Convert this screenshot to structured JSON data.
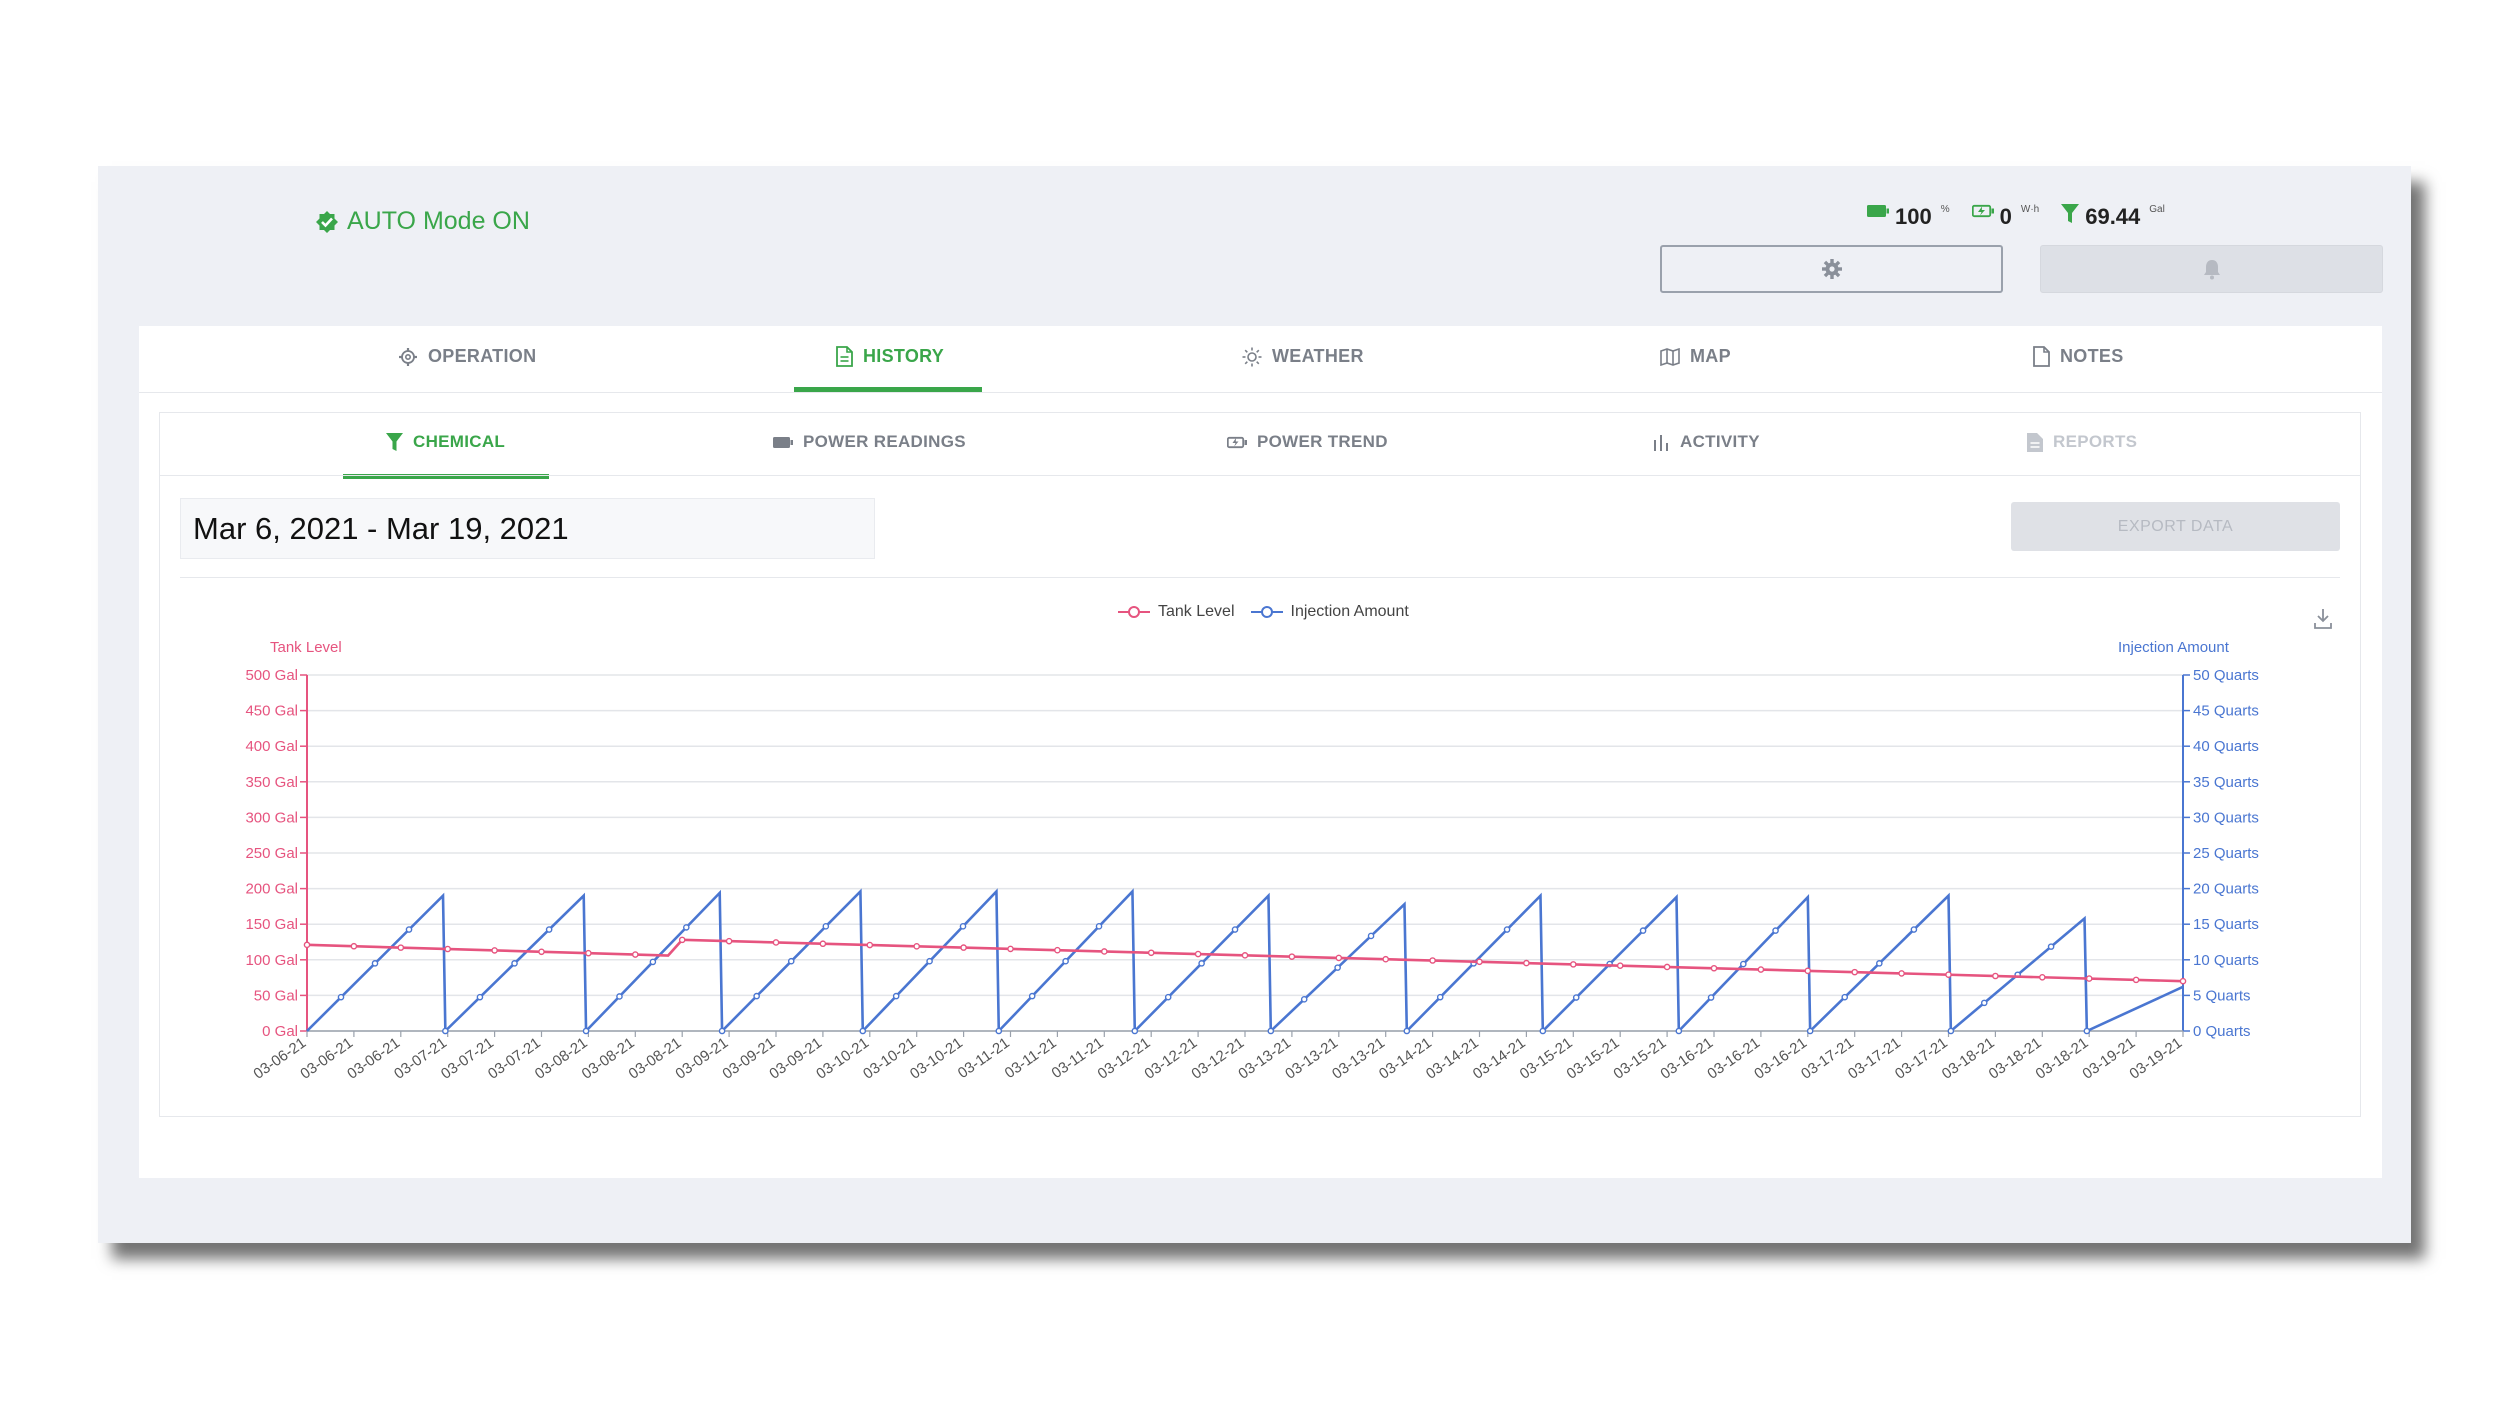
{
  "header": {
    "auto_mode": "AUTO Mode ON",
    "battery_value": "100",
    "battery_unit": "%",
    "energy_value": "0",
    "energy_unit": "W·h",
    "tank_value": "69.44",
    "tank_unit": "Gal"
  },
  "main_tabs": [
    {
      "label": "OPERATION",
      "icon": "gear-icon"
    },
    {
      "label": "HISTORY",
      "icon": "document-icon",
      "active": true
    },
    {
      "label": "WEATHER",
      "icon": "sun-icon"
    },
    {
      "label": "MAP",
      "icon": "map-icon"
    },
    {
      "label": "NOTES",
      "icon": "note-icon"
    }
  ],
  "sub_tabs": [
    {
      "label": "CHEMICAL",
      "icon": "funnel-icon",
      "active": true
    },
    {
      "label": "POWER READINGS",
      "icon": "battery-icon"
    },
    {
      "label": "POWER TREND",
      "icon": "battery-charging-icon"
    },
    {
      "label": "ACTIVITY",
      "icon": "bar-chart-icon"
    },
    {
      "label": "REPORTS",
      "icon": "report-icon",
      "disabled": true
    }
  ],
  "date_range": "Mar 6, 2021 - Mar 19, 2021",
  "export_label": "EXPORT DATA",
  "colors": {
    "accent": "#3aa64a",
    "tank": "#e6547f",
    "injection": "#4a76d1"
  },
  "chart_data": {
    "type": "line",
    "legend": [
      "Tank Level",
      "Injection Amount"
    ],
    "legend_position": "top-center",
    "left_axis": {
      "title": "Tank Level",
      "ticks": [
        "0 Gal",
        "50 Gal",
        "100 Gal",
        "150 Gal",
        "200 Gal",
        "250 Gal",
        "300 Gal",
        "350 Gal",
        "400 Gal",
        "450 Gal",
        "500 Gal"
      ],
      "range": [
        0,
        500
      ]
    },
    "right_axis": {
      "title": "Injection Amount",
      "ticks": [
        "0 Quarts",
        "5 Quarts",
        "10 Quarts",
        "15 Quarts",
        "20 Quarts",
        "25 Quarts",
        "30 Quarts",
        "35 Quarts",
        "40 Quarts",
        "45 Quarts",
        "50 Quarts"
      ],
      "range": [
        0,
        50
      ]
    },
    "x_labels": [
      "03-06-21",
      "03-06-21",
      "03-06-21",
      "03-07-21",
      "03-07-21",
      "03-07-21",
      "03-08-21",
      "03-08-21",
      "03-08-21",
      "03-09-21",
      "03-09-21",
      "03-09-21",
      "03-10-21",
      "03-10-21",
      "03-10-21",
      "03-11-21",
      "03-11-21",
      "03-11-21",
      "03-12-21",
      "03-12-21",
      "03-12-21",
      "03-13-21",
      "03-13-21",
      "03-13-21",
      "03-14-21",
      "03-14-21",
      "03-14-21",
      "03-15-21",
      "03-15-21",
      "03-15-21",
      "03-16-21",
      "03-16-21",
      "03-16-21",
      "03-17-21",
      "03-17-21",
      "03-17-21",
      "03-18-21",
      "03-18-21",
      "03-18-21",
      "03-19-21",
      "03-19-21"
    ],
    "grid": true,
    "series": [
      {
        "name": "Tank Level",
        "axis": "left",
        "x": [
          0,
          1.7,
          3.4,
          3.6,
          3.9,
          4.6,
          5.4,
          40
        ],
        "y": [
          121,
          118,
          113,
          112,
          111,
          108,
          106,
          70
        ],
        "note_step": {
          "x_from": 7.7,
          "x_to": 8.0,
          "y_from": 106,
          "y_to": 128
        }
      },
      {
        "name": "Injection Amount",
        "axis": "right",
        "peaks": [
          {
            "x": 2.9,
            "y": 19.0
          },
          {
            "x": 5.9,
            "y": 19.0
          },
          {
            "x": 8.8,
            "y": 19.4
          },
          {
            "x": 11.8,
            "y": 19.6
          },
          {
            "x": 14.7,
            "y": 19.6
          },
          {
            "x": 17.6,
            "y": 19.6
          },
          {
            "x": 20.5,
            "y": 19.0
          },
          {
            "x": 23.4,
            "y": 17.8
          },
          {
            "x": 26.3,
            "y": 19.0
          },
          {
            "x": 29.2,
            "y": 18.8
          },
          {
            "x": 32.0,
            "y": 18.8
          },
          {
            "x": 35.0,
            "y": 19.0
          },
          {
            "x": 37.9,
            "y": 15.8
          }
        ],
        "end": {
          "x": 40,
          "y": 6.2
        }
      }
    ]
  }
}
